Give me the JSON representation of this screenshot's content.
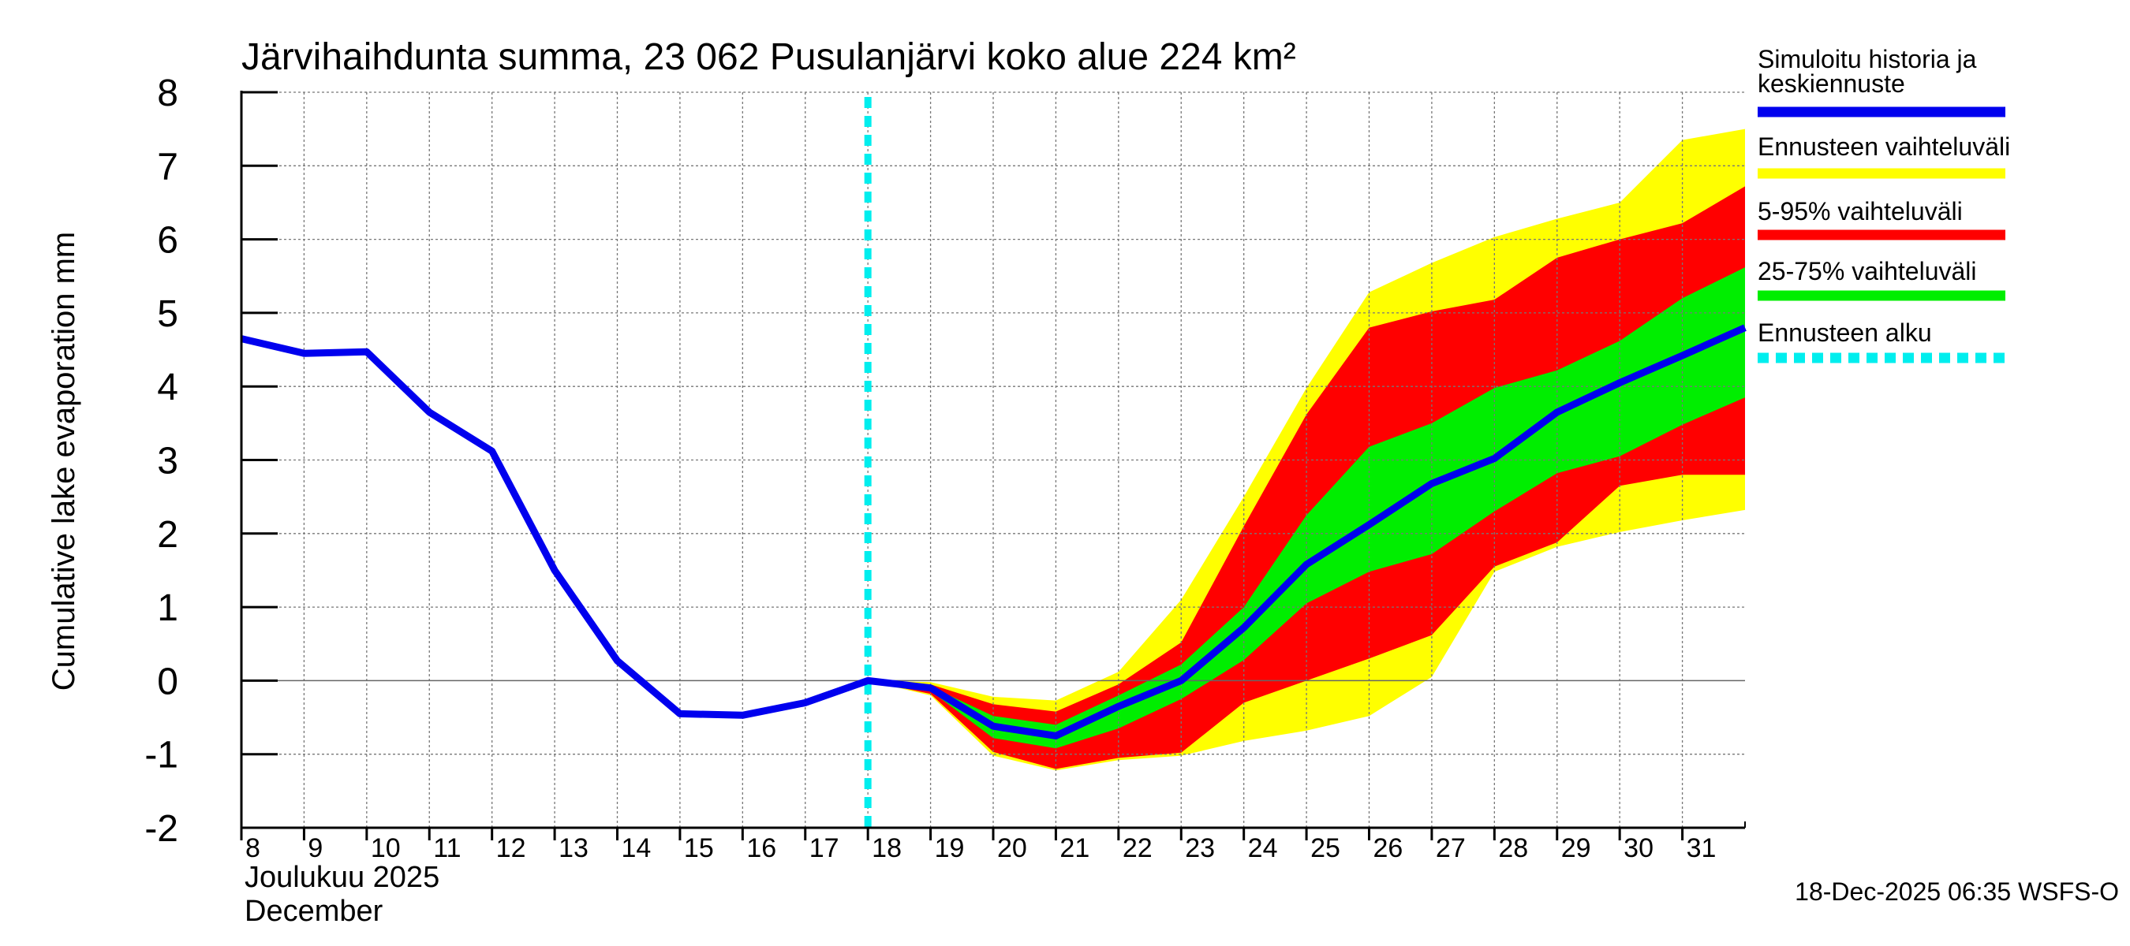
{
  "chart_data": {
    "type": "area",
    "title": "Järvihaihdunta summa, 23 062 Pusulanjärvi koko alue 224 km²",
    "ylabel": "Cumulative lake evaporation   mm",
    "xlabel_line1": "Joulukuu  2025",
    "xlabel_line2": "December",
    "ylim": [
      -2,
      8
    ],
    "xlim": [
      8,
      32
    ],
    "yticks": [
      -2,
      -1,
      0,
      1,
      2,
      3,
      4,
      5,
      6,
      7,
      8
    ],
    "xticks": [
      8,
      9,
      10,
      11,
      12,
      13,
      14,
      15,
      16,
      17,
      18,
      19,
      20,
      21,
      22,
      23,
      24,
      25,
      26,
      27,
      28,
      29,
      30,
      31
    ],
    "forecast_start_day": 18,
    "x": [
      18,
      19,
      20,
      21,
      22,
      23,
      24,
      25,
      26,
      27,
      28,
      29,
      30,
      31,
      32
    ],
    "history": {
      "name": "Simuloitu historia ja keskiennuste",
      "color": "#0000ee",
      "x": [
        8,
        9,
        10,
        11,
        12,
        13,
        14,
        15,
        16,
        17,
        18,
        19,
        20,
        21,
        22,
        23,
        24,
        25,
        26,
        27,
        28,
        29,
        30,
        31,
        32
      ],
      "values": [
        4.65,
        4.45,
        4.47,
        3.65,
        3.12,
        1.5,
        0.27,
        -0.45,
        -0.47,
        -0.3,
        0.0,
        -0.1,
        -0.62,
        -0.75,
        -0.35,
        0.0,
        0.72,
        1.58,
        2.12,
        2.68,
        3.02,
        3.65,
        4.05,
        4.42,
        4.8
      ],
      "lineWidth": 9
    },
    "bands": [
      {
        "name": "Ennusteen vaihteluväli",
        "color": "#ffff00",
        "upper": [
          0.0,
          -0.02,
          -0.22,
          -0.27,
          0.12,
          1.1,
          2.5,
          3.98,
          5.28,
          5.68,
          6.03,
          6.28,
          6.5,
          7.35,
          7.5
        ],
        "lower": [
          0.0,
          -0.2,
          -1.02,
          -1.22,
          -1.08,
          -1.02,
          -0.82,
          -0.68,
          -0.48,
          0.05,
          1.48,
          1.82,
          2.02,
          2.18,
          2.32
        ]
      },
      {
        "name": "5-95% vaihteluväli",
        "color": "#ff0000",
        "upper": [
          0.0,
          -0.05,
          -0.32,
          -0.42,
          -0.05,
          0.52,
          2.1,
          3.62,
          4.8,
          5.02,
          5.18,
          5.75,
          6.0,
          6.22,
          6.72
        ],
        "lower": [
          0.0,
          -0.18,
          -0.97,
          -1.2,
          -1.05,
          -0.98,
          -0.3,
          0.0,
          0.3,
          0.62,
          1.55,
          1.88,
          2.65,
          2.8,
          2.8
        ]
      },
      {
        "name": "25-75% vaihteluväli",
        "color": "#00ee00",
        "upper": [
          0.0,
          -0.08,
          -0.48,
          -0.6,
          -0.2,
          0.22,
          1.0,
          2.25,
          3.18,
          3.5,
          3.98,
          4.22,
          4.62,
          5.2,
          5.62
        ],
        "lower": [
          0.0,
          -0.14,
          -0.78,
          -0.92,
          -0.65,
          -0.25,
          0.28,
          1.05,
          1.48,
          1.72,
          2.3,
          2.82,
          3.05,
          3.48,
          3.85
        ]
      }
    ],
    "legend": [
      {
        "label": "Simuloitu historia ja keskiennuste",
        "color": "#0000ee",
        "style": "solid"
      },
      {
        "label": "Ennusteen vaihteluväli",
        "color": "#ffff00",
        "style": "solid"
      },
      {
        "label": "5-95% vaihteluväli",
        "color": "#ff0000",
        "style": "solid"
      },
      {
        "label": "25-75% vaihteluväli",
        "color": "#00ee00",
        "style": "solid"
      },
      {
        "label": "Ennusteen alku",
        "color": "#00eeee",
        "style": "dashed"
      }
    ],
    "legend_placement": "right",
    "grid": true
  },
  "timestamp": "18-Dec-2025 06:35 WSFS-O"
}
